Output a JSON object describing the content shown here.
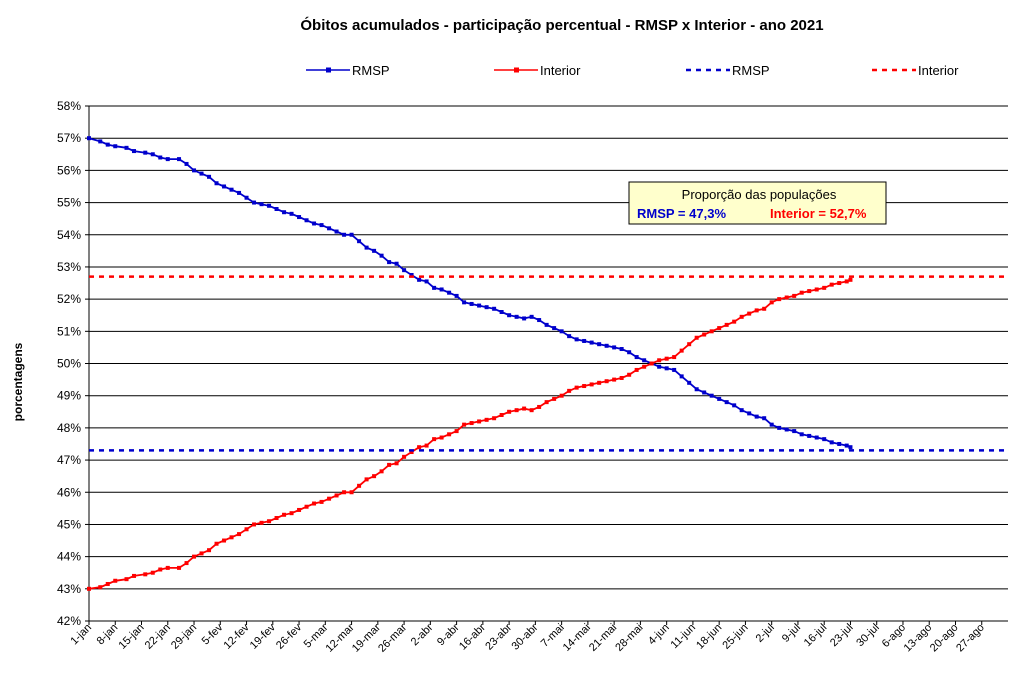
{
  "chart_data": {
    "type": "line",
    "title": "Óbitos acumulados - participação percentual - RMSP x Interior  - ano 2021",
    "ylabel": "porcentagens",
    "xlabel": "",
    "ylim": [
      42,
      58
    ],
    "y_ticks": [
      "42%",
      "43%",
      "44%",
      "45%",
      "46%",
      "47%",
      "48%",
      "49%",
      "50%",
      "51%",
      "52%",
      "53%",
      "54%",
      "55%",
      "56%",
      "57%",
      "58%"
    ],
    "grid": "horizontal",
    "legend_position": "top",
    "x_ticks": [
      "1-jan",
      "8-jan",
      "15-jan",
      "22-jan",
      "29-jan",
      "5-fev",
      "12-fev",
      "19-fev",
      "26-fev",
      "5-mar",
      "12-mar",
      "19-mar",
      "26-mar",
      "2-abr",
      "9-abr",
      "16-abr",
      "23-abr",
      "30-abr",
      "7-mai",
      "14-mai",
      "21-mai",
      "28-mai",
      "4-jun",
      "11-jun",
      "18-jun",
      "25-jun",
      "2-jul",
      "9-jul",
      "16-jul",
      "23-jul",
      "30-jul",
      "6-ago",
      "13-ago",
      "20-ago",
      "27-ago"
    ],
    "series": [
      {
        "name": "RMSP",
        "color": "#0000CC",
        "style": "line-markers",
        "points": [
          [
            0,
            57.0
          ],
          [
            3,
            56.9
          ],
          [
            5,
            56.8
          ],
          [
            7,
            56.75
          ],
          [
            10,
            56.7
          ],
          [
            12,
            56.6
          ],
          [
            15,
            56.55
          ],
          [
            17,
            56.5
          ],
          [
            19,
            56.4
          ],
          [
            21,
            56.35
          ],
          [
            24,
            56.35
          ],
          [
            26,
            56.2
          ],
          [
            28,
            56.0
          ],
          [
            30,
            55.9
          ],
          [
            32,
            55.8
          ],
          [
            34,
            55.6
          ],
          [
            36,
            55.5
          ],
          [
            38,
            55.4
          ],
          [
            40,
            55.3
          ],
          [
            42,
            55.15
          ],
          [
            44,
            55.0
          ],
          [
            46,
            54.95
          ],
          [
            48,
            54.9
          ],
          [
            50,
            54.8
          ],
          [
            52,
            54.7
          ],
          [
            54,
            54.65
          ],
          [
            56,
            54.55
          ],
          [
            58,
            54.45
          ],
          [
            60,
            54.35
          ],
          [
            62,
            54.3
          ],
          [
            64,
            54.2
          ],
          [
            66,
            54.1
          ],
          [
            68,
            54.0
          ],
          [
            70,
            54.0
          ],
          [
            72,
            53.8
          ],
          [
            74,
            53.6
          ],
          [
            76,
            53.5
          ],
          [
            78,
            53.35
          ],
          [
            80,
            53.15
          ],
          [
            82,
            53.1
          ],
          [
            84,
            52.9
          ],
          [
            86,
            52.75
          ],
          [
            88,
            52.6
          ],
          [
            90,
            52.55
          ],
          [
            92,
            52.35
          ],
          [
            94,
            52.3
          ],
          [
            96,
            52.2
          ],
          [
            98,
            52.1
          ],
          [
            100,
            51.9
          ],
          [
            102,
            51.85
          ],
          [
            104,
            51.8
          ],
          [
            106,
            51.75
          ],
          [
            108,
            51.7
          ],
          [
            110,
            51.6
          ],
          [
            112,
            51.5
          ],
          [
            114,
            51.45
          ],
          [
            116,
            51.4
          ],
          [
            118,
            51.45
          ],
          [
            120,
            51.35
          ],
          [
            122,
            51.2
          ],
          [
            124,
            51.1
          ],
          [
            126,
            51.0
          ],
          [
            128,
            50.85
          ],
          [
            130,
            50.75
          ],
          [
            132,
            50.7
          ],
          [
            134,
            50.65
          ],
          [
            136,
            50.6
          ],
          [
            138,
            50.55
          ],
          [
            140,
            50.5
          ],
          [
            142,
            50.45
          ],
          [
            144,
            50.35
          ],
          [
            146,
            50.2
          ],
          [
            148,
            50.1
          ],
          [
            150,
            50.0
          ],
          [
            152,
            49.9
          ],
          [
            154,
            49.85
          ],
          [
            156,
            49.8
          ],
          [
            158,
            49.6
          ],
          [
            160,
            49.4
          ],
          [
            162,
            49.2
          ],
          [
            164,
            49.1
          ],
          [
            166,
            49.0
          ],
          [
            168,
            48.9
          ],
          [
            170,
            48.8
          ],
          [
            172,
            48.7
          ],
          [
            174,
            48.55
          ],
          [
            176,
            48.45
          ],
          [
            178,
            48.35
          ],
          [
            180,
            48.3
          ],
          [
            182,
            48.1
          ],
          [
            184,
            48.0
          ],
          [
            186,
            47.95
          ],
          [
            188,
            47.9
          ],
          [
            190,
            47.8
          ],
          [
            192,
            47.75
          ],
          [
            194,
            47.7
          ],
          [
            196,
            47.65
          ],
          [
            198,
            47.55
          ],
          [
            200,
            47.5
          ],
          [
            202,
            47.45
          ],
          [
            203,
            47.4
          ]
        ]
      },
      {
        "name": "Interior",
        "color": "#FF0000",
        "style": "line-markers",
        "points": [
          [
            0,
            43.0
          ],
          [
            3,
            43.05
          ],
          [
            5,
            43.15
          ],
          [
            7,
            43.25
          ],
          [
            10,
            43.3
          ],
          [
            12,
            43.4
          ],
          [
            15,
            43.45
          ],
          [
            17,
            43.5
          ],
          [
            19,
            43.6
          ],
          [
            21,
            43.65
          ],
          [
            24,
            43.65
          ],
          [
            26,
            43.8
          ],
          [
            28,
            44.0
          ],
          [
            30,
            44.1
          ],
          [
            32,
            44.2
          ],
          [
            34,
            44.4
          ],
          [
            36,
            44.5
          ],
          [
            38,
            44.6
          ],
          [
            40,
            44.7
          ],
          [
            42,
            44.85
          ],
          [
            44,
            45.0
          ],
          [
            46,
            45.05
          ],
          [
            48,
            45.1
          ],
          [
            50,
            45.2
          ],
          [
            52,
            45.3
          ],
          [
            54,
            45.35
          ],
          [
            56,
            45.45
          ],
          [
            58,
            45.55
          ],
          [
            60,
            45.65
          ],
          [
            62,
            45.7
          ],
          [
            64,
            45.8
          ],
          [
            66,
            45.9
          ],
          [
            68,
            46.0
          ],
          [
            70,
            46.0
          ],
          [
            72,
            46.2
          ],
          [
            74,
            46.4
          ],
          [
            76,
            46.5
          ],
          [
            78,
            46.65
          ],
          [
            80,
            46.85
          ],
          [
            82,
            46.9
          ],
          [
            84,
            47.1
          ],
          [
            86,
            47.25
          ],
          [
            88,
            47.4
          ],
          [
            90,
            47.45
          ],
          [
            92,
            47.65
          ],
          [
            94,
            47.7
          ],
          [
            96,
            47.8
          ],
          [
            98,
            47.9
          ],
          [
            100,
            48.1
          ],
          [
            102,
            48.15
          ],
          [
            104,
            48.2
          ],
          [
            106,
            48.25
          ],
          [
            108,
            48.3
          ],
          [
            110,
            48.4
          ],
          [
            112,
            48.5
          ],
          [
            114,
            48.55
          ],
          [
            116,
            48.6
          ],
          [
            118,
            48.55
          ],
          [
            120,
            48.65
          ],
          [
            122,
            48.8
          ],
          [
            124,
            48.9
          ],
          [
            126,
            49.0
          ],
          [
            128,
            49.15
          ],
          [
            130,
            49.25
          ],
          [
            132,
            49.3
          ],
          [
            134,
            49.35
          ],
          [
            136,
            49.4
          ],
          [
            138,
            49.45
          ],
          [
            140,
            49.5
          ],
          [
            142,
            49.55
          ],
          [
            144,
            49.65
          ],
          [
            146,
            49.8
          ],
          [
            148,
            49.9
          ],
          [
            150,
            50.0
          ],
          [
            152,
            50.1
          ],
          [
            154,
            50.15
          ],
          [
            156,
            50.2
          ],
          [
            158,
            50.4
          ],
          [
            160,
            50.6
          ],
          [
            162,
            50.8
          ],
          [
            164,
            50.9
          ],
          [
            166,
            51.0
          ],
          [
            168,
            51.1
          ],
          [
            170,
            51.2
          ],
          [
            172,
            51.3
          ],
          [
            174,
            51.45
          ],
          [
            176,
            51.55
          ],
          [
            178,
            51.65
          ],
          [
            180,
            51.7
          ],
          [
            182,
            51.9
          ],
          [
            184,
            52.0
          ],
          [
            186,
            52.05
          ],
          [
            188,
            52.1
          ],
          [
            190,
            52.2
          ],
          [
            192,
            52.25
          ],
          [
            194,
            52.3
          ],
          [
            196,
            52.35
          ],
          [
            198,
            52.45
          ],
          [
            200,
            52.5
          ],
          [
            202,
            52.55
          ],
          [
            203,
            52.6
          ]
        ]
      },
      {
        "name": "RMSP",
        "color": "#0000CC",
        "style": "dashed",
        "y": 47.3
      },
      {
        "name": "Interior",
        "color": "#FF0000",
        "style": "dashed",
        "y": 52.7
      }
    ],
    "annotation": {
      "title": "Proporção das populações",
      "rmsp_text": "RMSP = 47,3%",
      "interior_text": "Interior = 52,7%",
      "background": "#FFFFCC",
      "rmsp_color": "#0000CC",
      "interior_color": "#FF0000"
    }
  }
}
